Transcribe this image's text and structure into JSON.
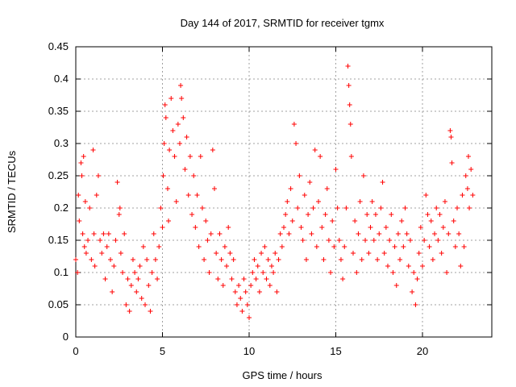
{
  "chart_data": {
    "type": "scatter",
    "title": "Day 144 of 2017, SRMTID for receiver tgmx",
    "xlabel": "GPS time / hours",
    "ylabel": "SRMTID / TECUs",
    "xlim": [
      0,
      24
    ],
    "ylim": [
      0,
      0.45
    ],
    "x_ticks": [
      0,
      5,
      10,
      15,
      20
    ],
    "x_tick_labels": [
      "0",
      "5",
      "10",
      "15",
      "20"
    ],
    "y_ticks": [
      0,
      0.05,
      0.1,
      0.15,
      0.2,
      0.25,
      0.3,
      0.35,
      0.4,
      0.45
    ],
    "y_tick_labels": [
      "0",
      "0.05",
      "0.1",
      "0.15",
      "0.2",
      "0.25",
      "0.3",
      "0.35",
      "0.4",
      "0.45"
    ],
    "grid": true,
    "marker": "+",
    "color": "#ff0000",
    "series": [
      {
        "name": "SRMTID",
        "points": [
          [
            0.0,
            0.12
          ],
          [
            0.1,
            0.1
          ],
          [
            0.15,
            0.22
          ],
          [
            0.2,
            0.18
          ],
          [
            0.3,
            0.27
          ],
          [
            0.35,
            0.25
          ],
          [
            0.4,
            0.16
          ],
          [
            0.45,
            0.28
          ],
          [
            0.5,
            0.14
          ],
          [
            0.55,
            0.21
          ],
          [
            0.6,
            0.13
          ],
          [
            0.7,
            0.15
          ],
          [
            0.8,
            0.2
          ],
          [
            0.9,
            0.12
          ],
          [
            1.0,
            0.29
          ],
          [
            1.05,
            0.16
          ],
          [
            1.1,
            0.11
          ],
          [
            1.2,
            0.22
          ],
          [
            1.3,
            0.25
          ],
          [
            1.4,
            0.15
          ],
          [
            1.5,
            0.13
          ],
          [
            1.6,
            0.16
          ],
          [
            1.7,
            0.09
          ],
          [
            1.8,
            0.14
          ],
          [
            1.9,
            0.16
          ],
          [
            2.0,
            0.12
          ],
          [
            2.1,
            0.07
          ],
          [
            2.2,
            0.11
          ],
          [
            2.3,
            0.15
          ],
          [
            2.4,
            0.24
          ],
          [
            2.5,
            0.19
          ],
          [
            2.55,
            0.2
          ],
          [
            2.6,
            0.13
          ],
          [
            2.7,
            0.1
          ],
          [
            2.8,
            0.16
          ],
          [
            2.9,
            0.05
          ],
          [
            3.0,
            0.09
          ],
          [
            3.1,
            0.04
          ],
          [
            3.2,
            0.08
          ],
          [
            3.3,
            0.12
          ],
          [
            3.4,
            0.1
          ],
          [
            3.5,
            0.07
          ],
          [
            3.6,
            0.09
          ],
          [
            3.7,
            0.11
          ],
          [
            3.8,
            0.06
          ],
          [
            3.9,
            0.14
          ],
          [
            4.0,
            0.05
          ],
          [
            4.1,
            0.12
          ],
          [
            4.2,
            0.08
          ],
          [
            4.3,
            0.04
          ],
          [
            4.4,
            0.1
          ],
          [
            4.5,
            0.16
          ],
          [
            4.6,
            0.12
          ],
          [
            4.7,
            0.09
          ],
          [
            4.8,
            0.14
          ],
          [
            4.9,
            0.2
          ],
          [
            5.0,
            0.17
          ],
          [
            5.05,
            0.25
          ],
          [
            5.1,
            0.3
          ],
          [
            5.15,
            0.36
          ],
          [
            5.2,
            0.34
          ],
          [
            5.3,
            0.23
          ],
          [
            5.35,
            0.18
          ],
          [
            5.4,
            0.29
          ],
          [
            5.5,
            0.37
          ],
          [
            5.6,
            0.32
          ],
          [
            5.7,
            0.28
          ],
          [
            5.8,
            0.21
          ],
          [
            5.9,
            0.33
          ],
          [
            6.0,
            0.3
          ],
          [
            6.05,
            0.39
          ],
          [
            6.1,
            0.37
          ],
          [
            6.2,
            0.34
          ],
          [
            6.3,
            0.26
          ],
          [
            6.4,
            0.31
          ],
          [
            6.5,
            0.22
          ],
          [
            6.6,
            0.28
          ],
          [
            6.7,
            0.19
          ],
          [
            6.8,
            0.25
          ],
          [
            6.9,
            0.17
          ],
          [
            7.0,
            0.22
          ],
          [
            7.1,
            0.14
          ],
          [
            7.2,
            0.28
          ],
          [
            7.3,
            0.2
          ],
          [
            7.4,
            0.12
          ],
          [
            7.5,
            0.18
          ],
          [
            7.6,
            0.15
          ],
          [
            7.7,
            0.1
          ],
          [
            7.8,
            0.16
          ],
          [
            7.9,
            0.29
          ],
          [
            8.0,
            0.23
          ],
          [
            8.1,
            0.13
          ],
          [
            8.2,
            0.09
          ],
          [
            8.3,
            0.16
          ],
          [
            8.4,
            0.12
          ],
          [
            8.5,
            0.08
          ],
          [
            8.6,
            0.14
          ],
          [
            8.7,
            0.11
          ],
          [
            8.8,
            0.17
          ],
          [
            8.9,
            0.13
          ],
          [
            9.0,
            0.09
          ],
          [
            9.1,
            0.12
          ],
          [
            9.2,
            0.07
          ],
          [
            9.3,
            0.05
          ],
          [
            9.4,
            0.08
          ],
          [
            9.5,
            0.06
          ],
          [
            9.6,
            0.04
          ],
          [
            9.7,
            0.09
          ],
          [
            9.8,
            0.07
          ],
          [
            9.9,
            0.05
          ],
          [
            10.0,
            0.03
          ],
          [
            10.1,
            0.08
          ],
          [
            10.2,
            0.1
          ],
          [
            10.3,
            0.12
          ],
          [
            10.4,
            0.09
          ],
          [
            10.5,
            0.11
          ],
          [
            10.6,
            0.07
          ],
          [
            10.7,
            0.13
          ],
          [
            10.8,
            0.1
          ],
          [
            10.9,
            0.14
          ],
          [
            11.0,
            0.09
          ],
          [
            11.1,
            0.12
          ],
          [
            11.2,
            0.08
          ],
          [
            11.3,
            0.11
          ],
          [
            11.4,
            0.1
          ],
          [
            11.5,
            0.13
          ],
          [
            11.6,
            0.07
          ],
          [
            11.7,
            0.12
          ],
          [
            11.8,
            0.16
          ],
          [
            11.9,
            0.14
          ],
          [
            12.0,
            0.17
          ],
          [
            12.1,
            0.19
          ],
          [
            12.2,
            0.21
          ],
          [
            12.3,
            0.16
          ],
          [
            12.4,
            0.23
          ],
          [
            12.5,
            0.18
          ],
          [
            12.6,
            0.33
          ],
          [
            12.7,
            0.3
          ],
          [
            12.8,
            0.2
          ],
          [
            12.9,
            0.25
          ],
          [
            13.0,
            0.17
          ],
          [
            13.1,
            0.15
          ],
          [
            13.2,
            0.22
          ],
          [
            13.3,
            0.12
          ],
          [
            13.4,
            0.19
          ],
          [
            13.5,
            0.24
          ],
          [
            13.6,
            0.16
          ],
          [
            13.7,
            0.2
          ],
          [
            13.8,
            0.29
          ],
          [
            13.9,
            0.14
          ],
          [
            14.0,
            0.21
          ],
          [
            14.1,
            0.28
          ],
          [
            14.2,
            0.17
          ],
          [
            14.3,
            0.12
          ],
          [
            14.4,
            0.19
          ],
          [
            14.5,
            0.23
          ],
          [
            14.6,
            0.15
          ],
          [
            14.7,
            0.1
          ],
          [
            14.8,
            0.18
          ],
          [
            14.9,
            0.14
          ],
          [
            15.0,
            0.26
          ],
          [
            15.1,
            0.2
          ],
          [
            15.2,
            0.15
          ],
          [
            15.3,
            0.12
          ],
          [
            15.4,
            0.09
          ],
          [
            15.5,
            0.14
          ],
          [
            15.6,
            0.2
          ],
          [
            15.7,
            0.42
          ],
          [
            15.75,
            0.39
          ],
          [
            15.8,
            0.36
          ],
          [
            15.85,
            0.33
          ],
          [
            15.9,
            0.28
          ],
          [
            16.0,
            0.13
          ],
          [
            16.1,
            0.18
          ],
          [
            16.2,
            0.1
          ],
          [
            16.3,
            0.16
          ],
          [
            16.4,
            0.21
          ],
          [
            16.5,
            0.12
          ],
          [
            16.6,
            0.25
          ],
          [
            16.7,
            0.15
          ],
          [
            16.8,
            0.19
          ],
          [
            16.9,
            0.13
          ],
          [
            17.0,
            0.17
          ],
          [
            17.1,
            0.21
          ],
          [
            17.2,
            0.15
          ],
          [
            17.3,
            0.19
          ],
          [
            17.4,
            0.12
          ],
          [
            17.5,
            0.16
          ],
          [
            17.6,
            0.2
          ],
          [
            17.7,
            0.24
          ],
          [
            17.8,
            0.13
          ],
          [
            17.9,
            0.17
          ],
          [
            18.0,
            0.11
          ],
          [
            18.1,
            0.15
          ],
          [
            18.2,
            0.19
          ],
          [
            18.3,
            0.1
          ],
          [
            18.4,
            0.14
          ],
          [
            18.5,
            0.08
          ],
          [
            18.6,
            0.16
          ],
          [
            18.7,
            0.12
          ],
          [
            18.8,
            0.18
          ],
          [
            18.9,
            0.14
          ],
          [
            19.0,
            0.2
          ],
          [
            19.1,
            0.16
          ],
          [
            19.2,
            0.11
          ],
          [
            19.3,
            0.15
          ],
          [
            19.4,
            0.07
          ],
          [
            19.5,
            0.1
          ],
          [
            19.6,
            0.05
          ],
          [
            19.7,
            0.09
          ],
          [
            19.8,
            0.13
          ],
          [
            19.9,
            0.17
          ],
          [
            20.0,
            0.11
          ],
          [
            20.1,
            0.15
          ],
          [
            20.2,
            0.22
          ],
          [
            20.3,
            0.19
          ],
          [
            20.4,
            0.14
          ],
          [
            20.5,
            0.18
          ],
          [
            20.6,
            0.12
          ],
          [
            20.7,
            0.16
          ],
          [
            20.8,
            0.2
          ],
          [
            20.9,
            0.15
          ],
          [
            21.0,
            0.19
          ],
          [
            21.1,
            0.13
          ],
          [
            21.2,
            0.17
          ],
          [
            21.3,
            0.21
          ],
          [
            21.4,
            0.1
          ],
          [
            21.5,
            0.16
          ],
          [
            21.6,
            0.32
          ],
          [
            21.65,
            0.31
          ],
          [
            21.7,
            0.27
          ],
          [
            21.8,
            0.18
          ],
          [
            21.9,
            0.14
          ],
          [
            22.0,
            0.2
          ],
          [
            22.1,
            0.16
          ],
          [
            22.2,
            0.11
          ],
          [
            22.3,
            0.22
          ],
          [
            22.4,
            0.14
          ],
          [
            22.5,
            0.25
          ],
          [
            22.6,
            0.23
          ],
          [
            22.65,
            0.28
          ],
          [
            22.7,
            0.2
          ],
          [
            22.8,
            0.26
          ],
          [
            22.9,
            0.22
          ]
        ]
      }
    ]
  }
}
